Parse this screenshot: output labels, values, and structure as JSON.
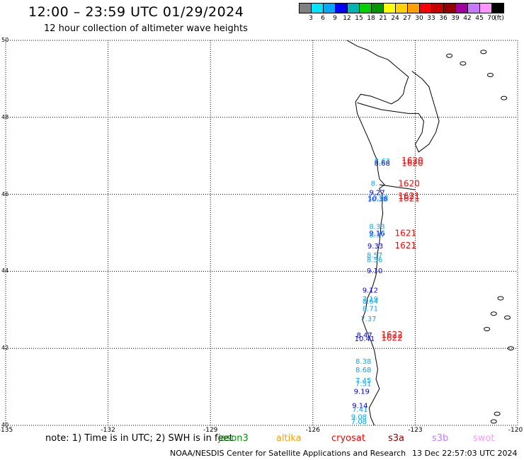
{
  "header": {
    "title": "12:00 – 23:59 UTC 01/29/2024",
    "subtitle": "12 hour collection of altimeter wave heights"
  },
  "colorbar": {
    "colors": [
      "#808080",
      "#00e5ff",
      "#00a8ff",
      "#0000ff",
      "#00b4b4",
      "#00d200",
      "#009600",
      "#ffff00",
      "#ffd200",
      "#ffa000",
      "#ff0000",
      "#c80000",
      "#960000",
      "#a000a0",
      "#c878ff",
      "#ff96ff",
      "#000000"
    ],
    "labels": [
      "3",
      "6",
      "9",
      "12",
      "15",
      "18",
      "21",
      "24",
      "27",
      "30",
      "33",
      "36",
      "39",
      "42",
      "45",
      "70",
      "(ft)"
    ]
  },
  "axes": {
    "lat_labels": [
      "50",
      "48",
      "46",
      "44",
      "42",
      "40"
    ],
    "lon_labels": [
      "-135",
      "-132",
      "-129",
      "-126",
      "-123",
      "-120"
    ]
  },
  "map": {
    "coastline_color": "#000000",
    "grid_style": "dotted",
    "extent": {
      "lon": [
        -135,
        -120
      ],
      "lat": [
        40,
        50
      ]
    }
  },
  "observations": [
    {
      "text": "8.63",
      "lon": -124.2,
      "lat": 46.8,
      "color": "#00a8ff"
    },
    {
      "text": "8.68",
      "lon": -124.2,
      "lat": 46.75,
      "color": "#0000ff"
    },
    {
      "text": "1620",
      "lon": -123.4,
      "lat": 46.8,
      "color": "#ff0000"
    },
    {
      "text": "1620",
      "lon": -123.4,
      "lat": 46.74,
      "color": "#ff0000"
    },
    {
      "text": "8.",
      "lon": -124.3,
      "lat": 46.22,
      "color": "#00a8ff"
    },
    {
      "text": "1620",
      "lon": -123.5,
      "lat": 46.2,
      "color": "#ff0000"
    },
    {
      "text": "9.27",
      "lon": -124.35,
      "lat": 45.98,
      "color": "#0000ff"
    },
    {
      "text": "10.38",
      "lon": -124.4,
      "lat": 45.82,
      "color": "#0000ff"
    },
    {
      "text": "10.38",
      "lon": -124.38,
      "lat": 45.85,
      "color": "#00a8ff"
    },
    {
      "text": "1621",
      "lon": -123.5,
      "lat": 45.88,
      "color": "#ff0000"
    },
    {
      "text": "1621",
      "lon": -123.5,
      "lat": 45.82,
      "color": "#ff0000"
    },
    {
      "text": "8.33",
      "lon": -124.35,
      "lat": 45.1,
      "color": "#00a8ff"
    },
    {
      "text": "9.16",
      "lon": -124.35,
      "lat": 44.93,
      "color": "#0000ff"
    },
    {
      "text": "8.37",
      "lon": -124.35,
      "lat": 44.88,
      "color": "#00a8ff"
    },
    {
      "text": "1621",
      "lon": -123.6,
      "lat": 44.92,
      "color": "#ff0000"
    },
    {
      "text": "9.33",
      "lon": -124.4,
      "lat": 44.6,
      "color": "#0000ff"
    },
    {
      "text": "1621",
      "lon": -123.6,
      "lat": 44.6,
      "color": "#ff0000"
    },
    {
      "text": "8.57",
      "lon": -124.42,
      "lat": 44.36,
      "color": "#00a8ff"
    },
    {
      "text": "8.56",
      "lon": -124.42,
      "lat": 44.24,
      "color": "#00a8ff"
    },
    {
      "text": "9.10",
      "lon": -124.42,
      "lat": 43.95,
      "color": "#0000ff"
    },
    {
      "text": "9.12",
      "lon": -124.55,
      "lat": 43.45,
      "color": "#0000ff"
    },
    {
      "text": "7.19",
      "lon": -124.55,
      "lat": 43.22,
      "color": "#00a8ff"
    },
    {
      "text": "8.64",
      "lon": -124.55,
      "lat": 43.16,
      "color": "#00a8ff"
    },
    {
      "text": "8.71",
      "lon": -124.55,
      "lat": 42.97,
      "color": "#00a8ff"
    },
    {
      "text": "7.37",
      "lon": -124.6,
      "lat": 42.7,
      "color": "#00a8ff"
    },
    {
      "text": "8.47",
      "lon": -124.72,
      "lat": 42.28,
      "color": "#0000ff"
    },
    {
      "text": "10.41",
      "lon": -124.78,
      "lat": 42.19,
      "color": "#0000ff"
    },
    {
      "text": "1622",
      "lon": -124.0,
      "lat": 42.28,
      "color": "#ff0000"
    },
    {
      "text": "1622",
      "lon": -124.0,
      "lat": 42.2,
      "color": "#ff0000"
    },
    {
      "text": "8.38",
      "lon": -124.75,
      "lat": 41.6,
      "color": "#00a8ff"
    },
    {
      "text": "8.68",
      "lon": -124.75,
      "lat": 41.38,
      "color": "#00a8ff"
    },
    {
      "text": "7.45",
      "lon": -124.75,
      "lat": 41.1,
      "color": "#00a8ff"
    },
    {
      "text": "7.51",
      "lon": -124.75,
      "lat": 41.02,
      "color": "#00a8ff"
    },
    {
      "text": "9.19",
      "lon": -124.8,
      "lat": 40.82,
      "color": "#0000ff"
    },
    {
      "text": "9.14",
      "lon": -124.85,
      "lat": 40.45,
      "color": "#0000ff"
    },
    {
      "text": "7.41",
      "lon": -124.85,
      "lat": 40.35,
      "color": "#00a8ff"
    },
    {
      "text": "9.08",
      "lon": -124.88,
      "lat": 40.16,
      "color": "#00a8ff"
    },
    {
      "text": "7.08",
      "lon": -124.88,
      "lat": 40.04,
      "color": "#00a8ff"
    }
  ],
  "note": "note:  1) Time is in UTC;  2) SWH is in feet",
  "legend": [
    {
      "label": "jason3",
      "color": "#009600"
    },
    {
      "label": "altika",
      "color": "#ffa000"
    },
    {
      "label": "cryosat",
      "color": "#ff0000"
    },
    {
      "label": "s3a",
      "color": "#960000"
    },
    {
      "label": "s3b",
      "color": "#c878ff"
    },
    {
      "label": "swot",
      "color": "#ff96ff"
    }
  ],
  "footer": {
    "credit": "NOAA/NESDIS Center for Satellite Applications and Research",
    "timestamp": "13 Dec 22:57:03 UTC 2024"
  }
}
